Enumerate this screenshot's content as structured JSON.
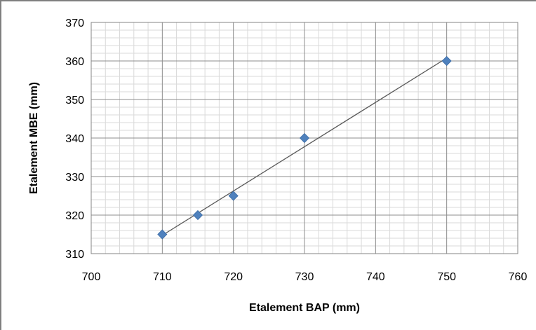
{
  "chart_data": {
    "type": "scatter",
    "title": "",
    "xlabel": "Etalement BAP (mm)",
    "ylabel": "Etalement MBE (mm)",
    "xlim": [
      700,
      760
    ],
    "ylim": [
      310,
      370
    ],
    "x_ticks": [
      700,
      710,
      720,
      730,
      740,
      750,
      760
    ],
    "y_ticks": [
      310,
      320,
      330,
      340,
      350,
      360,
      370
    ],
    "x_minor_step": 2,
    "y_minor_step": 2,
    "grid": true,
    "legend": "none",
    "marker_color": "#4f81bd",
    "trendline": {
      "type": "linear",
      "color": "#595959"
    },
    "series": [
      {
        "points": [
          {
            "x": 710,
            "y": 315
          },
          {
            "x": 715,
            "y": 320
          },
          {
            "x": 720,
            "y": 325
          },
          {
            "x": 730,
            "y": 340
          },
          {
            "x": 750,
            "y": 360
          }
        ]
      }
    ]
  }
}
